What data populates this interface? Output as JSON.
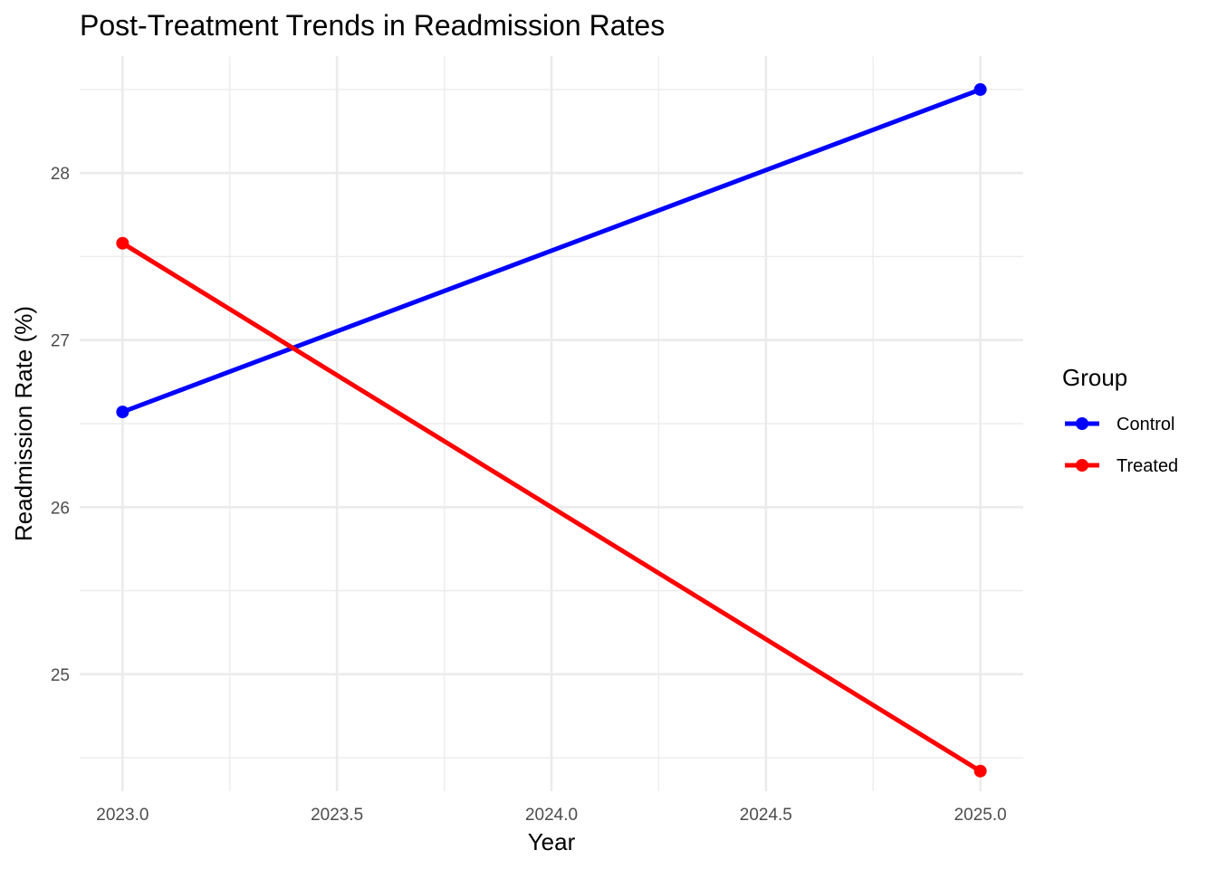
{
  "chart_data": {
    "type": "line",
    "title": "Post-Treatment Trends in Readmission Rates",
    "xlabel": "Year",
    "ylabel": "Readmission Rate (%)",
    "x": [
      2023.0,
      2025.0
    ],
    "xlim": [
      2022.9,
      2025.1
    ],
    "ylim": [
      24.3,
      28.7
    ],
    "x_ticks": [
      2023.0,
      2023.5,
      2024.0,
      2024.5,
      2025.0
    ],
    "x_tick_labels": [
      "2023.0",
      "2023.5",
      "2024.0",
      "2024.5",
      "2025.0"
    ],
    "y_ticks": [
      25,
      26,
      27,
      28
    ],
    "y_tick_labels": [
      "25",
      "26",
      "27",
      "28"
    ],
    "grid": true,
    "legend": {
      "title": "Group",
      "position": "right"
    },
    "series": [
      {
        "name": "Control",
        "color": "#0000ff",
        "values": [
          26.57,
          28.5
        ]
      },
      {
        "name": "Treated",
        "color": "#ff0000",
        "values": [
          27.58,
          24.42
        ]
      }
    ]
  }
}
